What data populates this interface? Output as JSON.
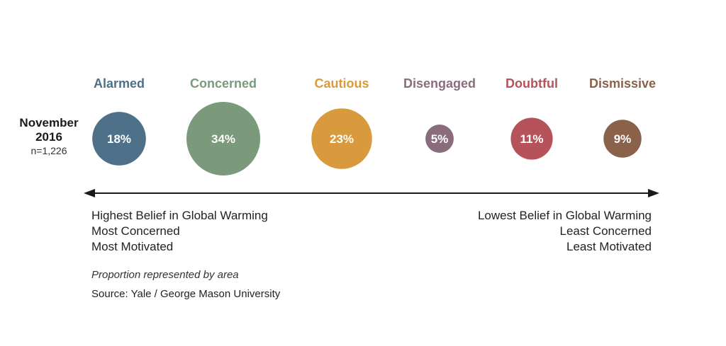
{
  "chart_data": {
    "type": "bubble",
    "period_label": "November 2016",
    "sample_label": "n=1,226",
    "encoding_note": "Proportion represented by area",
    "source": "Source: Yale / George Mason University",
    "categories": [
      "Alarmed",
      "Concerned",
      "Cautious",
      "Disengaged",
      "Doubtful",
      "Dismissive"
    ],
    "values": [
      18,
      34,
      23,
      5,
      11,
      9
    ],
    "value_labels": [
      "18%",
      "34%",
      "23%",
      "5%",
      "11%",
      "9%"
    ],
    "colors": [
      "#4e7088",
      "#7a9a7b",
      "#d99a3e",
      "#8a6d7c",
      "#b5525a",
      "#8a6249"
    ],
    "axis": {
      "left_labels": [
        "Highest Belief in Global Warming",
        "Most Concerned",
        "Most Motivated"
      ],
      "right_labels": [
        "Lowest Belief in Global Warming",
        "Least Concerned",
        "Least Motivated"
      ]
    }
  }
}
